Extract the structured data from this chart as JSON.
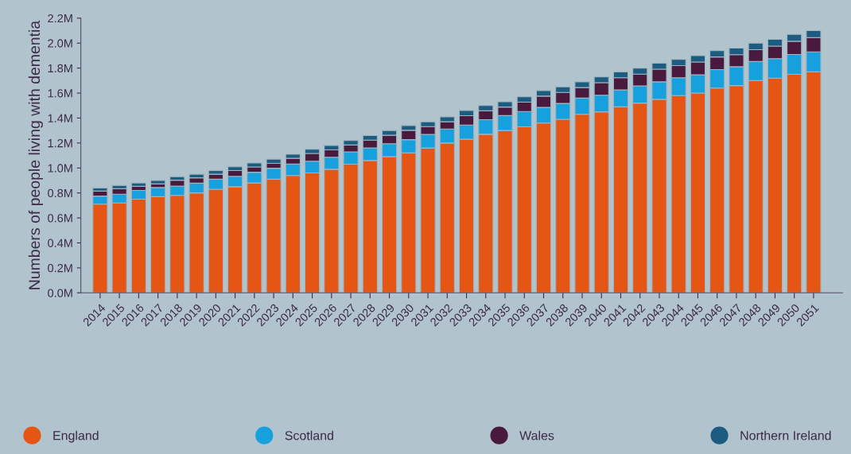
{
  "chart_data": {
    "type": "bar",
    "stacked": true,
    "ylabel": "Numbers of people living with dementia",
    "categories": [
      "2014",
      "2015",
      "2016",
      "2017",
      "2018",
      "2019",
      "2020",
      "2021",
      "2022",
      "2023",
      "2024",
      "2025",
      "2026",
      "2027",
      "2028",
      "2029",
      "2030",
      "2031",
      "2032",
      "2033",
      "2034",
      "2035",
      "2036",
      "2037",
      "2038",
      "2039",
      "2040",
      "2041",
      "2042",
      "2043",
      "2044",
      "2045",
      "2046",
      "2047",
      "2048",
      "2049",
      "2050",
      "2051"
    ],
    "series": [
      {
        "name": "England",
        "color": "#e55514",
        "values": [
          0.71,
          0.72,
          0.75,
          0.77,
          0.78,
          0.8,
          0.83,
          0.85,
          0.88,
          0.91,
          0.94,
          0.96,
          0.99,
          1.03,
          1.06,
          1.09,
          1.12,
          1.16,
          1.2,
          1.23,
          1.27,
          1.3,
          1.33,
          1.36,
          1.39,
          1.43,
          1.45,
          1.49,
          1.52,
          1.55,
          1.58,
          1.6,
          1.64,
          1.66,
          1.7,
          1.72,
          1.75,
          1.77
        ]
      },
      {
        "name": "Scotland",
        "color": "#17a0de",
        "values": [
          0.065,
          0.07,
          0.07,
          0.073,
          0.075,
          0.078,
          0.08,
          0.083,
          0.086,
          0.088,
          0.091,
          0.094,
          0.096,
          0.099,
          0.101,
          0.104,
          0.107,
          0.109,
          0.112,
          0.114,
          0.117,
          0.12,
          0.122,
          0.125,
          0.127,
          0.13,
          0.133,
          0.135,
          0.138,
          0.14,
          0.143,
          0.146,
          0.148,
          0.151,
          0.153,
          0.156,
          0.159,
          0.16
        ]
      },
      {
        "name": "Wales",
        "color": "#4a1a3e",
        "values": [
          0.04,
          0.044,
          0.033,
          0.029,
          0.047,
          0.043,
          0.04,
          0.046,
          0.042,
          0.039,
          0.046,
          0.062,
          0.059,
          0.055,
          0.062,
          0.068,
          0.075,
          0.062,
          0.058,
          0.075,
          0.071,
          0.068,
          0.075,
          0.091,
          0.088,
          0.084,
          0.1,
          0.098,
          0.094,
          0.101,
          0.097,
          0.103,
          0.101,
          0.097,
          0.094,
          0.1,
          0.106,
          0.114
        ]
      },
      {
        "name": "Northern Ireland",
        "color": "#1b5c80",
        "values": [
          0.025,
          0.026,
          0.027,
          0.028,
          0.028,
          0.029,
          0.03,
          0.031,
          0.032,
          0.033,
          0.033,
          0.034,
          0.035,
          0.036,
          0.037,
          0.038,
          0.038,
          0.039,
          0.04,
          0.041,
          0.042,
          0.042,
          0.043,
          0.044,
          0.045,
          0.046,
          0.047,
          0.047,
          0.048,
          0.049,
          0.05,
          0.051,
          0.051,
          0.052,
          0.053,
          0.054,
          0.055,
          0.056
        ]
      }
    ],
    "ylim": [
      0,
      2.2
    ],
    "yticks": [
      {
        "value": 0,
        "label": "0.0M"
      },
      {
        "value": 0.2,
        "label": "0.2M"
      },
      {
        "value": 0.4,
        "label": "0.4M"
      },
      {
        "value": 0.6,
        "label": "0.6M"
      },
      {
        "value": 0.8,
        "label": "0.8M"
      },
      {
        "value": 1.0,
        "label": "1.0M"
      },
      {
        "value": 1.2,
        "label": "1.2M"
      },
      {
        "value": 1.4,
        "label": "1.4M"
      },
      {
        "value": 1.6,
        "label": "1.6M"
      },
      {
        "value": 1.8,
        "label": "1.8M"
      },
      {
        "value": 2.0,
        "label": "2.0M"
      },
      {
        "value": 2.2,
        "label": "2.2M"
      }
    ],
    "grid": false,
    "legend": "bottom"
  }
}
